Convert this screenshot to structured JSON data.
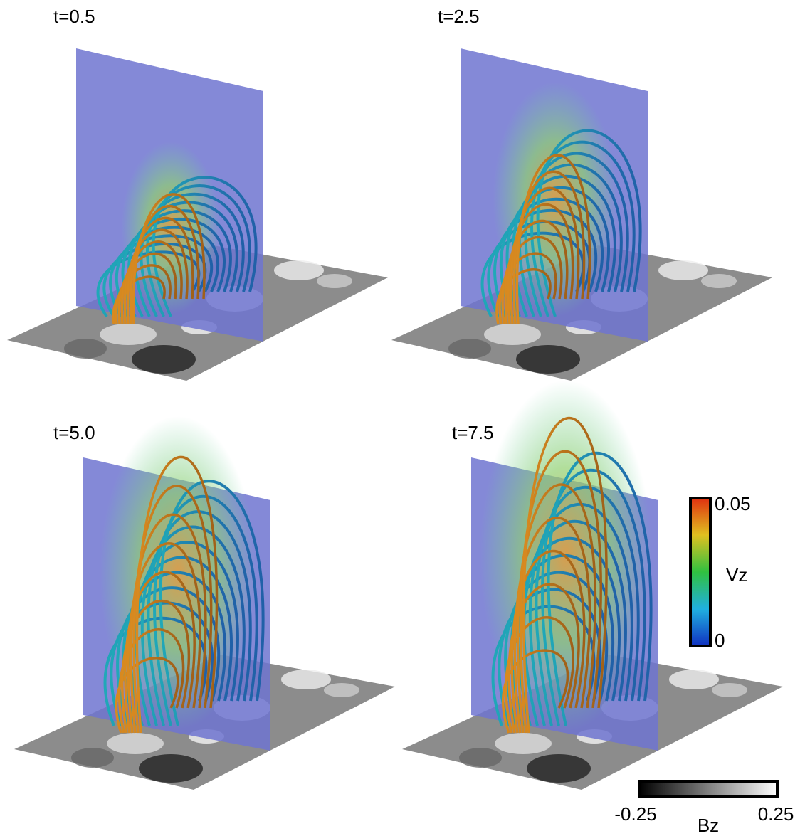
{
  "panels": [
    {
      "title": "t=0.5"
    },
    {
      "title": "t=2.5"
    },
    {
      "title": "t=5.0"
    },
    {
      "title": "t=7.5"
    }
  ],
  "vz_colorbar": {
    "label": "Vz",
    "min": 0,
    "max": 0.05
  },
  "bz_colorbar": {
    "label": "Bz",
    "min": -0.25,
    "max": 0.25
  }
}
